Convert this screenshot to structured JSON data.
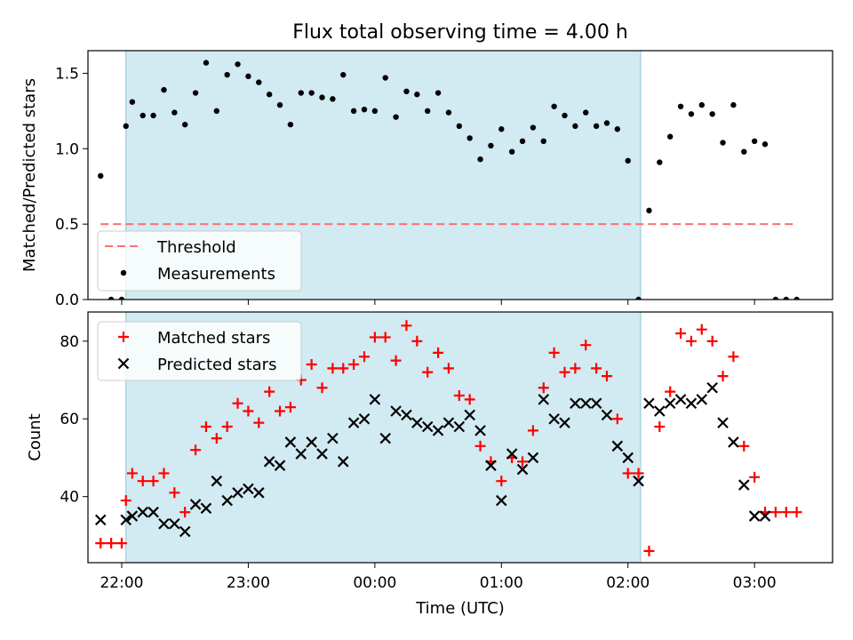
{
  "figure_title": "Flux total observing time = 4.00 h",
  "colors": {
    "shade": "#add8e6",
    "threshold": "#ff6f6f",
    "measurements": "#000000",
    "matched": "#ff0000",
    "predicted": "#000000"
  },
  "chart_data": [
    {
      "type": "scatter",
      "ylabel": "Matched/Predicted stars",
      "ylim": [
        0,
        1.65
      ],
      "yticks": [
        0.0,
        0.5,
        1.0,
        1.5
      ],
      "ytick_labels": [
        "0.0",
        "0.5",
        "1.0",
        "1.5"
      ],
      "xlim": [
        "21:44",
        "03:37"
      ],
      "observing_window": [
        "22:02",
        "02:06"
      ],
      "legend_position": "lower-left",
      "threshold": {
        "name": "Threshold",
        "value": 0.5,
        "x": [
          "21:50",
          "03:20"
        ]
      },
      "series": [
        {
          "name": "Measurements",
          "x": [
            "21:50",
            "21:55",
            "22:00",
            "22:02",
            "22:05",
            "22:10",
            "22:15",
            "22:20",
            "22:25",
            "22:30",
            "22:35",
            "22:40",
            "22:45",
            "22:50",
            "22:55",
            "23:00",
            "23:05",
            "23:10",
            "23:15",
            "23:20",
            "23:25",
            "23:30",
            "23:35",
            "23:40",
            "23:45",
            "23:50",
            "23:55",
            "00:00",
            "00:05",
            "00:10",
            "00:15",
            "00:20",
            "00:25",
            "00:30",
            "00:35",
            "00:40",
            "00:45",
            "00:50",
            "00:55",
            "01:00",
            "01:05",
            "01:10",
            "01:15",
            "01:20",
            "01:25",
            "01:30",
            "01:35",
            "01:40",
            "01:45",
            "01:50",
            "01:55",
            "02:00",
            "02:05",
            "02:10",
            "02:15",
            "02:20",
            "02:25",
            "02:30",
            "02:35",
            "02:40",
            "02:45",
            "02:50",
            "02:55",
            "03:00",
            "03:05",
            "03:10",
            "03:15",
            "03:20"
          ],
          "y": [
            0.82,
            0.0,
            0.0,
            1.15,
            1.31,
            1.22,
            1.22,
            1.39,
            1.24,
            1.16,
            1.37,
            1.57,
            1.25,
            1.49,
            1.56,
            1.48,
            1.44,
            1.36,
            1.29,
            1.16,
            1.37,
            1.37,
            1.34,
            1.33,
            1.49,
            1.25,
            1.26,
            1.25,
            1.47,
            1.21,
            1.38,
            1.36,
            1.25,
            1.37,
            1.24,
            1.15,
            1.07,
            0.93,
            1.02,
            1.13,
            0.98,
            1.05,
            1.14,
            1.05,
            1.28,
            1.22,
            1.15,
            1.24,
            1.15,
            1.17,
            1.13,
            0.92,
            0.0,
            0.59,
            0.91,
            1.08,
            1.28,
            1.23,
            1.29,
            1.23,
            1.04,
            1.29,
            0.98,
            1.05,
            1.03,
            0.0,
            0.0,
            0.0
          ]
        }
      ]
    },
    {
      "type": "scatter",
      "xlabel": "Time (UTC)",
      "ylabel": "Count",
      "ylim": [
        23,
        87.5
      ],
      "yticks": [
        40,
        60,
        80
      ],
      "ytick_labels": [
        "40",
        "60",
        "80"
      ],
      "xlim": [
        "21:44",
        "03:37"
      ],
      "xticks": [
        "22:00",
        "23:00",
        "00:00",
        "01:00",
        "02:00",
        "03:00"
      ],
      "observing_window": [
        "22:02",
        "02:06"
      ],
      "legend_position": "upper-left",
      "series": [
        {
          "name": "Matched stars",
          "marker": "plus",
          "x": [
            "21:50",
            "21:55",
            "22:00",
            "22:02",
            "22:05",
            "22:10",
            "22:15",
            "22:20",
            "22:25",
            "22:30",
            "22:35",
            "22:40",
            "22:45",
            "22:50",
            "22:55",
            "23:00",
            "23:05",
            "23:10",
            "23:15",
            "23:20",
            "23:25",
            "23:30",
            "23:35",
            "23:40",
            "23:45",
            "23:50",
            "23:55",
            "00:00",
            "00:05",
            "00:10",
            "00:15",
            "00:20",
            "00:25",
            "00:30",
            "00:35",
            "00:40",
            "00:45",
            "00:50",
            "00:55",
            "01:00",
            "01:05",
            "01:10",
            "01:15",
            "01:20",
            "01:25",
            "01:30",
            "01:35",
            "01:40",
            "01:45",
            "01:50",
            "01:55",
            "02:00",
            "02:05",
            "02:10",
            "02:15",
            "02:20",
            "02:25",
            "02:30",
            "02:35",
            "02:40",
            "02:45",
            "02:50",
            "02:55",
            "03:00",
            "03:05",
            "03:10",
            "03:15",
            "03:20"
          ],
          "y": [
            28,
            28,
            28,
            39,
            46,
            44,
            44,
            46,
            41,
            36,
            52,
            58,
            55,
            58,
            64,
            62,
            59,
            67,
            62,
            63,
            70,
            74,
            68,
            73,
            73,
            74,
            76,
            81,
            81,
            75,
            84,
            80,
            72,
            77,
            73,
            66,
            65,
            53,
            49,
            44,
            50,
            49,
            57,
            68,
            77,
            72,
            73,
            79,
            73,
            71,
            60,
            46,
            46,
            26,
            58,
            67,
            82,
            80,
            83,
            80,
            71,
            76,
            53,
            45,
            36,
            36,
            36,
            36
          ]
        },
        {
          "name": "Predicted stars",
          "marker": "x",
          "x": [
            "21:50",
            "22:02",
            "22:05",
            "22:10",
            "22:15",
            "22:20",
            "22:25",
            "22:30",
            "22:35",
            "22:40",
            "22:45",
            "22:50",
            "22:55",
            "23:00",
            "23:05",
            "23:10",
            "23:15",
            "23:20",
            "23:25",
            "23:30",
            "23:35",
            "23:40",
            "23:45",
            "23:50",
            "23:55",
            "00:00",
            "00:05",
            "00:10",
            "00:15",
            "00:20",
            "00:25",
            "00:30",
            "00:35",
            "00:40",
            "00:45",
            "00:50",
            "00:55",
            "01:00",
            "01:05",
            "01:10",
            "01:15",
            "01:20",
            "01:25",
            "01:30",
            "01:35",
            "01:40",
            "01:45",
            "01:50",
            "01:55",
            "02:00",
            "02:05",
            "02:10",
            "02:15",
            "02:20",
            "02:25",
            "02:30",
            "02:35",
            "02:40",
            "02:45",
            "02:50",
            "02:55",
            "03:00",
            "03:05"
          ],
          "y": [
            34,
            34,
            35,
            36,
            36,
            33,
            33,
            31,
            38,
            37,
            44,
            39,
            41,
            42,
            41,
            49,
            48,
            54,
            51,
            54,
            51,
            55,
            49,
            59,
            60,
            65,
            55,
            62,
            61,
            59,
            58,
            57,
            59,
            58,
            61,
            57,
            48,
            39,
            51,
            47,
            50,
            65,
            60,
            59,
            64,
            64,
            64,
            61,
            53,
            50,
            44,
            64,
            62,
            64,
            65,
            64,
            65,
            68,
            59,
            54,
            43,
            35,
            35
          ]
        }
      ]
    }
  ]
}
